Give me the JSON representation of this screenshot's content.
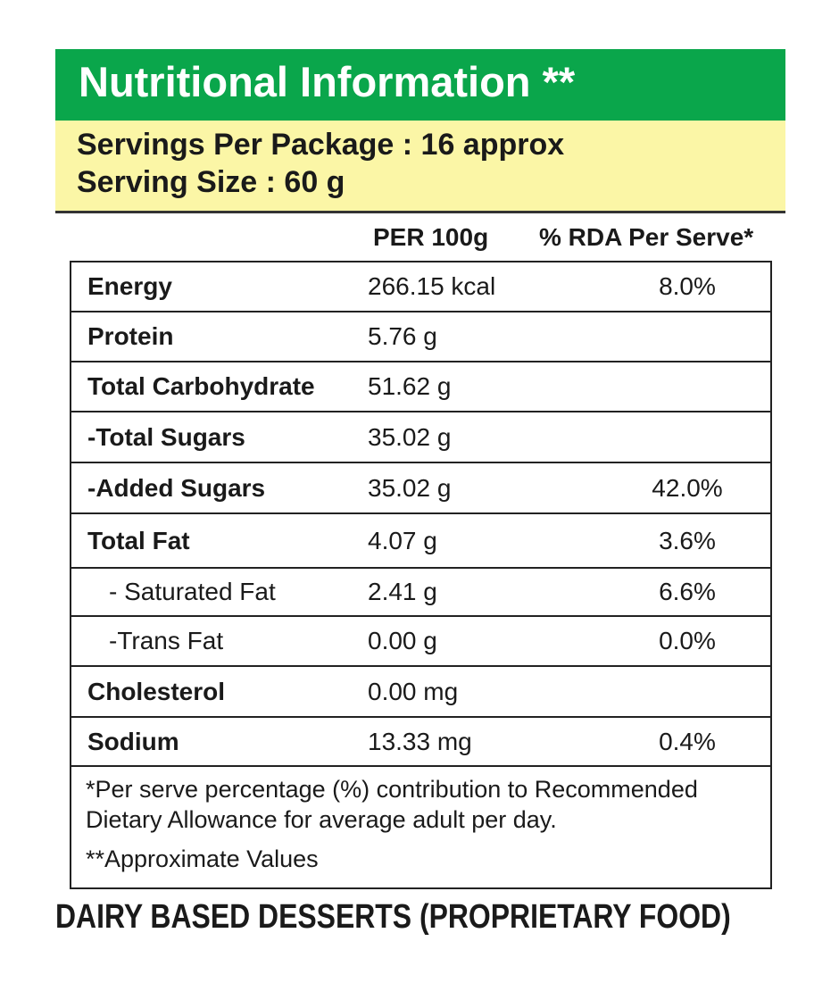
{
  "header": {
    "title": "Nutritional Information **",
    "servings_per_package": "Servings Per Package : 16 approx",
    "serving_size": "Serving Size : 60 g"
  },
  "table": {
    "columns": [
      "PER 100g",
      "% RDA Per Serve*"
    ],
    "rows": [
      {
        "name": "Energy",
        "per_100g": "266.15 kcal",
        "rda": "8.0%"
      },
      {
        "name": "Protein",
        "per_100g": "5.76 g"
      },
      {
        "name": "Total Carbohydrate",
        "per_100g": "51.62 g"
      },
      {
        "name": "-Total Sugars",
        "per_100g": "35.02 g"
      },
      {
        "name": "-Added Sugars",
        "per_100g": "35.02 g",
        "rda": "42.0%"
      },
      {
        "name": "Total Fat",
        "per_100g": "4.07 g",
        "rda": "3.6%"
      },
      {
        "name": "- Saturated Fat",
        "per_100g": "2.41 g",
        "rda": "6.6%"
      },
      {
        "name": "-Trans Fat",
        "per_100g": "0.00 g",
        "rda": "0.0%"
      },
      {
        "name": "Cholesterol",
        "per_100g": "0.00 mg"
      },
      {
        "name": "Sodium",
        "per_100g": "13.33 mg",
        "rda": "0.4%"
      }
    ],
    "footnotes": [
      "*Per serve percentage (%) contribution to Recommended Dietary Allowance for average adult per day.",
      "**Approximate Values"
    ]
  },
  "footer": {
    "category": "DAIRY BASED DESSERTS (PROPRIETARY FOOD)"
  }
}
